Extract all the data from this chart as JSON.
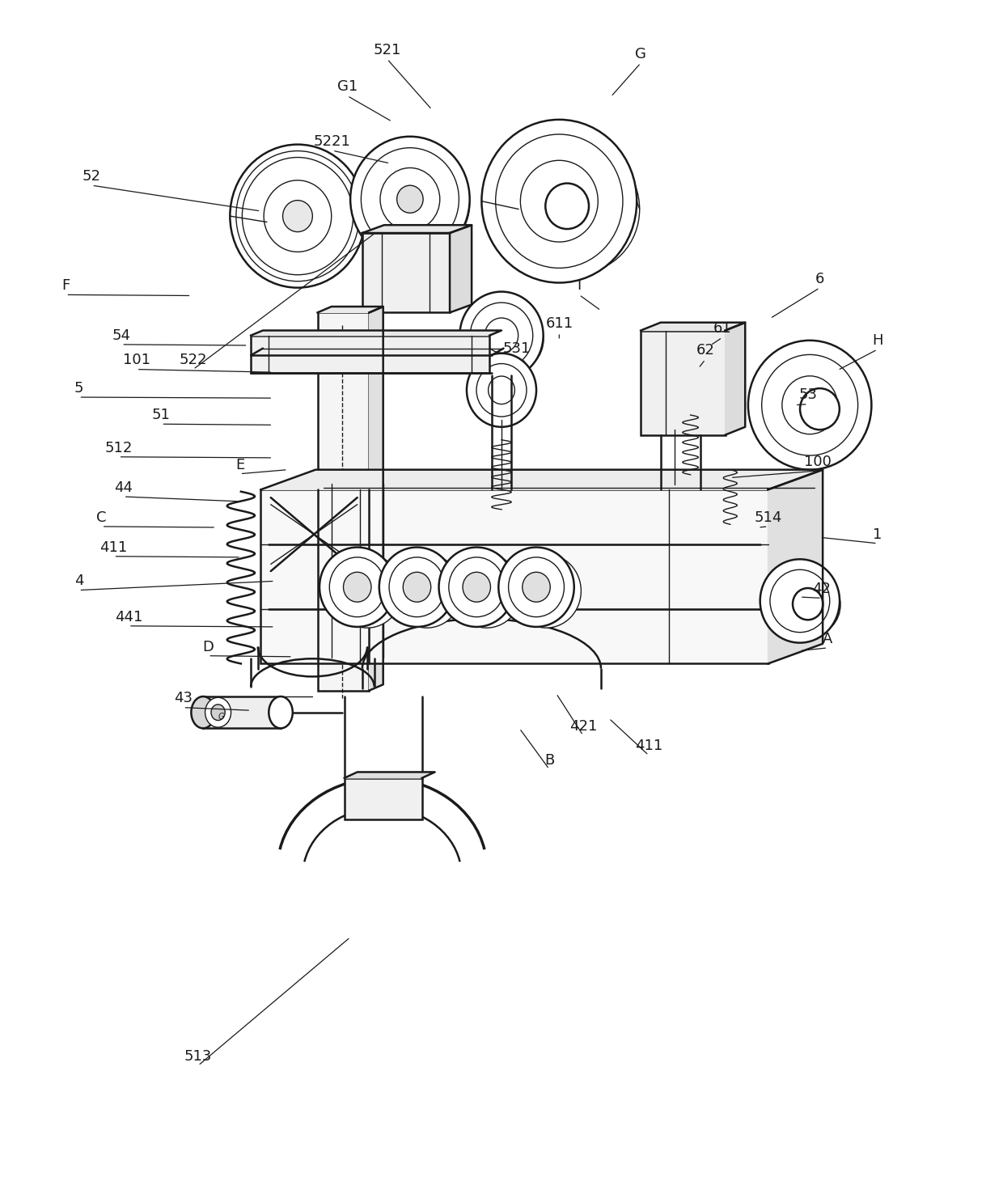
{
  "bg_color": "#ffffff",
  "line_color": "#1a1a1a",
  "fig_width": 12.4,
  "fig_height": 14.81,
  "lw_main": 1.8,
  "lw_thin": 1.0,
  "lw_thick": 2.5,
  "font_size": 13,
  "leaders": [
    [
      "521",
      385,
      48,
      430,
      108
    ],
    [
      "G1",
      345,
      85,
      390,
      120
    ],
    [
      "G",
      640,
      52,
      610,
      95
    ],
    [
      "52",
      88,
      175,
      258,
      210
    ],
    [
      "5221",
      330,
      140,
      388,
      162
    ],
    [
      "F",
      62,
      285,
      188,
      295
    ],
    [
      "I",
      578,
      285,
      600,
      310
    ],
    [
      "6",
      820,
      278,
      770,
      318
    ],
    [
      "54",
      118,
      335,
      245,
      345
    ],
    [
      "611",
      558,
      323,
      558,
      340
    ],
    [
      "531",
      515,
      348,
      525,
      362
    ],
    [
      "101",
      133,
      360,
      270,
      372
    ],
    [
      "522",
      190,
      360,
      373,
      232
    ],
    [
      "61",
      722,
      328,
      710,
      345
    ],
    [
      "62",
      705,
      350,
      698,
      368
    ],
    [
      "H",
      878,
      340,
      838,
      370
    ],
    [
      "5",
      75,
      388,
      270,
      398
    ],
    [
      "53",
      808,
      395,
      795,
      405
    ],
    [
      "51",
      158,
      415,
      270,
      425
    ],
    [
      "512",
      115,
      448,
      270,
      458
    ],
    [
      "E",
      237,
      465,
      285,
      470
    ],
    [
      "100",
      818,
      462,
      730,
      478
    ],
    [
      "44",
      120,
      488,
      240,
      502
    ],
    [
      "C",
      98,
      518,
      213,
      528
    ],
    [
      "514",
      768,
      518,
      758,
      528
    ],
    [
      "1",
      878,
      535,
      820,
      538
    ],
    [
      "411",
      110,
      548,
      238,
      558
    ],
    [
      "4",
      75,
      582,
      272,
      582
    ],
    [
      "441",
      125,
      618,
      272,
      628
    ],
    [
      "42",
      822,
      590,
      800,
      598
    ],
    [
      "D",
      205,
      648,
      290,
      658
    ],
    [
      "A",
      828,
      640,
      800,
      652
    ],
    [
      "43",
      180,
      700,
      248,
      712
    ],
    [
      "421",
      582,
      728,
      555,
      695
    ],
    [
      "411b",
      648,
      748,
      608,
      720
    ],
    [
      "B",
      548,
      762,
      518,
      730
    ],
    [
      "513",
      195,
      1060,
      348,
      940
    ]
  ]
}
